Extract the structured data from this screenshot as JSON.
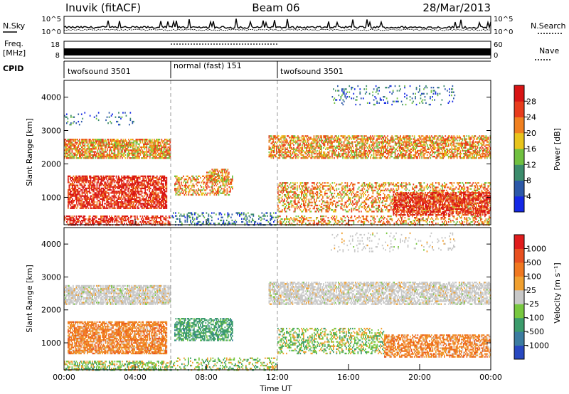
{
  "header": {
    "station": "Inuvik (fitACF)",
    "beam": "Beam 06",
    "date": "28/Mar/2013"
  },
  "top_panels": {
    "noise_left_label": "N.Sky",
    "noise_right_label": "N.Search",
    "noise_left_ticks": [
      "10^5",
      "10^0"
    ],
    "noise_right_ticks": [
      "10^5",
      "10^0"
    ],
    "freq_label_1": "Freq.",
    "freq_label_2": "[MHz]",
    "freq_ticks": [
      "18",
      "8"
    ],
    "nave_label": "Nave",
    "nave_ticks": [
      "60",
      "0"
    ],
    "cpid_label": "CPID",
    "cpid_segments": [
      "twofsound 3501",
      "normal (fast) 151",
      "twofsound 3501"
    ]
  },
  "chart_data": [
    {
      "type": "heatmap",
      "name": "power",
      "ylabel": "Slant Range [km]",
      "xlim": [
        0,
        24
      ],
      "ylim": [
        180,
        4500
      ],
      "y_ticks": [
        "4000",
        "3000",
        "2000",
        "1000"
      ],
      "colorbar_label": "Power [dB]",
      "colorbar_ticks": [
        "28",
        "24",
        "20",
        "16",
        "12",
        "8",
        "4"
      ],
      "colors": [
        "#1428e6",
        "#2c58a8",
        "#3c8c6c",
        "#70c040",
        "#e8c41c",
        "#f08020",
        "#e83c1c",
        "#d81414"
      ]
    },
    {
      "type": "heatmap",
      "name": "velocity",
      "ylabel": "Slant Range [km]",
      "xlabel": "Time UT",
      "xlim": [
        0,
        24
      ],
      "ylim": [
        180,
        4500
      ],
      "x_ticks": [
        "00:00",
        "04:00",
        "08:00",
        "12:00",
        "16:00",
        "20:00",
        "00:00"
      ],
      "y_ticks": [
        "4000",
        "3000",
        "2000",
        "1000"
      ],
      "colorbar_label": "Velocity [m s⁻¹]",
      "colorbar_ticks": [
        "1000",
        "500",
        "100",
        "25",
        "-25",
        "-100",
        "-500",
        "-1000"
      ],
      "colors": [
        "#2848c0",
        "#3c7ca0",
        "#3c9c6c",
        "#78c840",
        "#c8c8c8",
        "#f0a030",
        "#f07820",
        "#e85020",
        "#e01c1c"
      ]
    }
  ]
}
